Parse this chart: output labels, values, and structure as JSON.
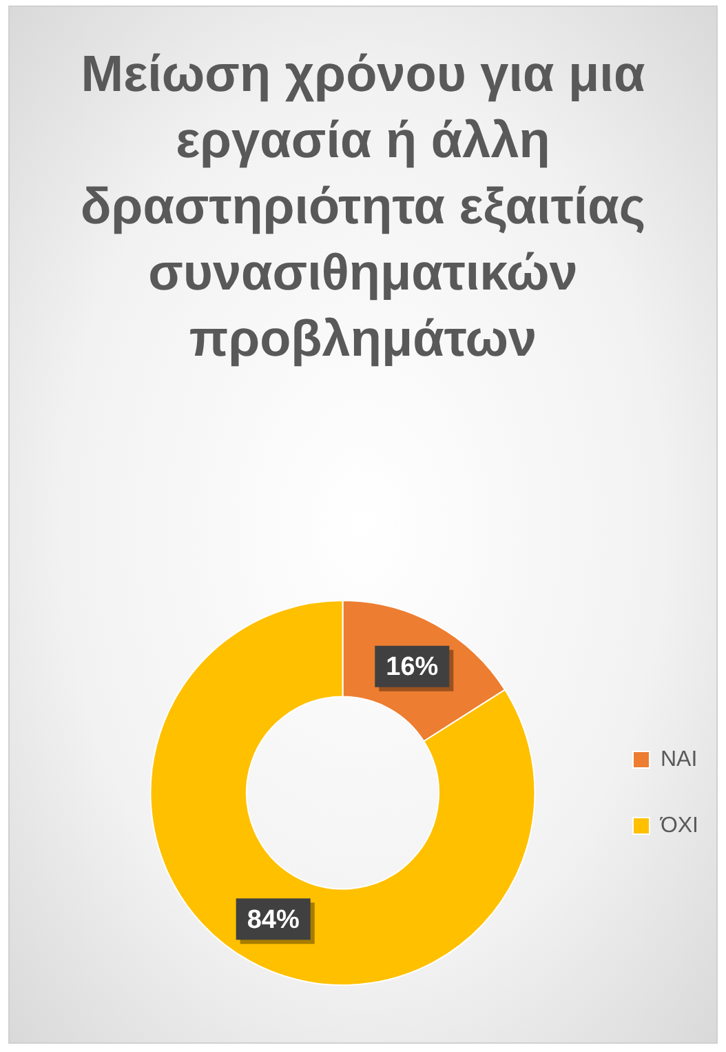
{
  "chart_data": {
    "type": "donut",
    "title": "Μείωση χρόνου για μια εργασία ή άλλη δραστηριότητα εξαιτίας συνασιθηματικών προβλημάτων",
    "categories": [
      "ΝΑΙ",
      "ΌΧΙ"
    ],
    "values": [
      16,
      84
    ],
    "colors": [
      "#ed7d31",
      "#ffc000"
    ],
    "value_labels": [
      "16%",
      "84%"
    ],
    "legend": "right"
  }
}
